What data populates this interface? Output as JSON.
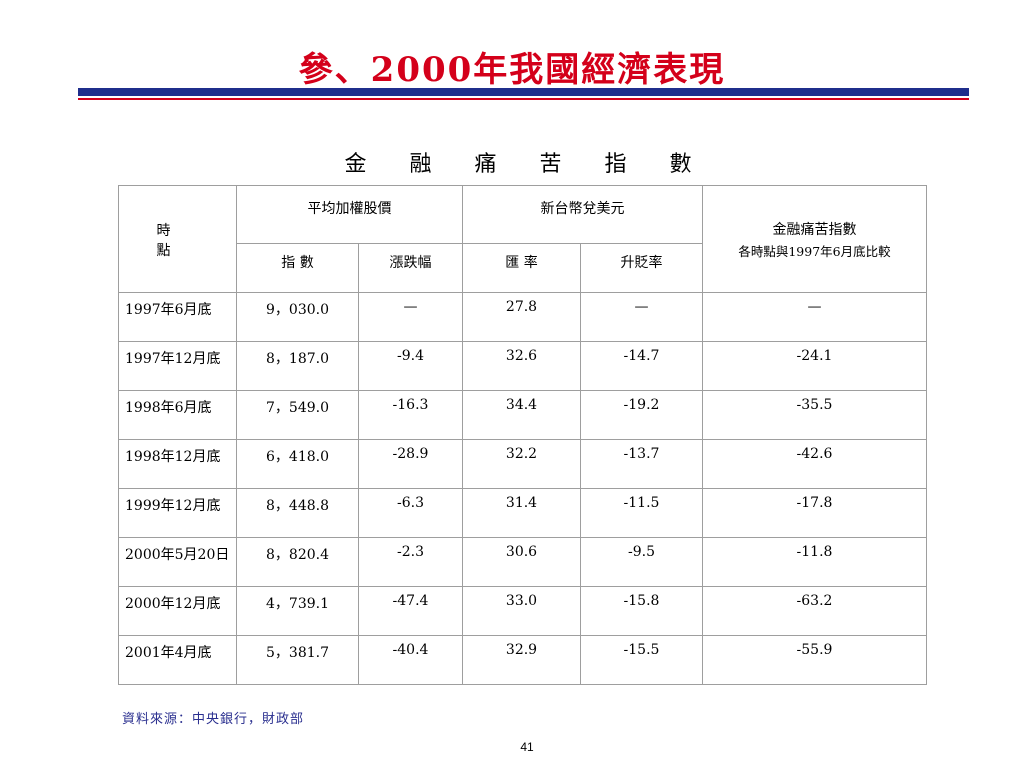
{
  "slide": {
    "title": "參、2000年我國經濟表現",
    "table_title": "金 融 痛 苦 指 數",
    "source": "資料來源：中央銀行，財政部",
    "page_number": "41",
    "colors": {
      "title": "#d4001a",
      "rule_blue": "#1f2e8c",
      "rule_red": "#d4001a"
    }
  },
  "table": {
    "header": {
      "time": "時　點",
      "stock_group": "平均加權股價",
      "fx_group": "新台幣兌美元",
      "index_group": "金融痛苦指數",
      "index_note": "各時點與1997年6月底比較",
      "sub_index": "指 數",
      "sub_change": "漲跌幅",
      "sub_rate": "匯 率",
      "sub_appr": "升貶率"
    },
    "rows": [
      {
        "time": "1997年6月底",
        "index": "9，030.0",
        "change": "—",
        "rate": "27.8",
        "appr": "—",
        "misery": "—"
      },
      {
        "time": "1997年12月底",
        "index": "8，187.0",
        "change": "-9.4",
        "rate": "32.6",
        "appr": "-14.7",
        "misery": "-24.1"
      },
      {
        "time": "1998年6月底",
        "index": "7，549.0",
        "change": "-16.3",
        "rate": "34.4",
        "appr": "-19.2",
        "misery": "-35.5"
      },
      {
        "time": "1998年12月底",
        "index": "6，418.0",
        "change": "-28.9",
        "rate": "32.2",
        "appr": "-13.7",
        "misery": "-42.6"
      },
      {
        "time": "1999年12月底",
        "index": "8，448.8",
        "change": "-6.3",
        "rate": "31.4",
        "appr": "-11.5",
        "misery": "-17.8"
      },
      {
        "time": "2000年5月20日",
        "index": "8，820.4",
        "change": "-2.3",
        "rate": "30.6",
        "appr": "-9.5",
        "misery": "-11.8"
      },
      {
        "time": "2000年12月底",
        "index": "4，739.1",
        "change": "-47.4",
        "rate": "33.0",
        "appr": "-15.8",
        "misery": "-63.2"
      },
      {
        "time": "2001年4月底",
        "index": "5，381.7",
        "change": "-40.4",
        "rate": "32.9",
        "appr": "-15.5",
        "misery": "-55.9"
      }
    ]
  }
}
